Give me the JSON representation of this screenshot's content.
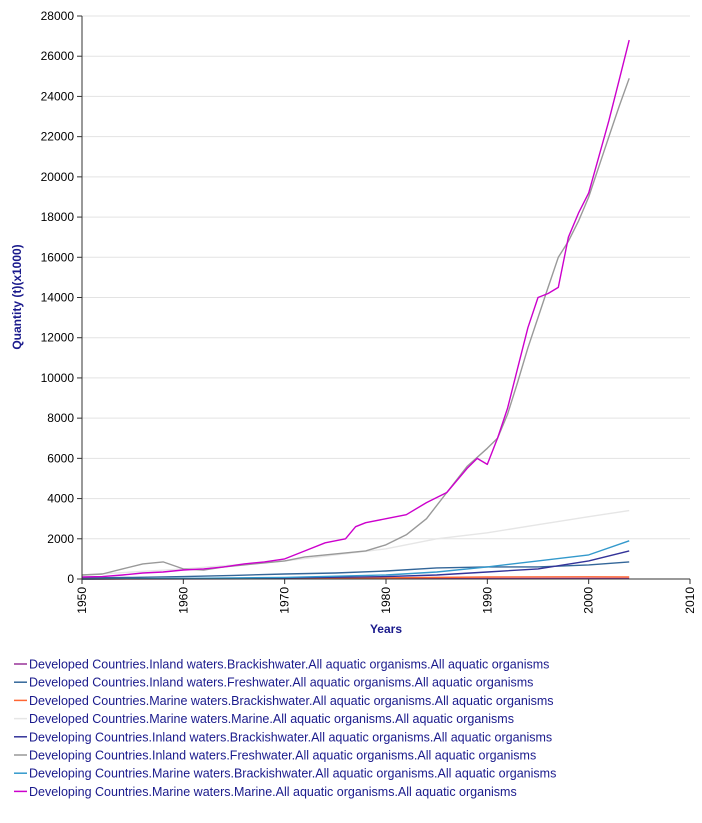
{
  "chart_data": {
    "type": "line",
    "title": "",
    "xlabel": "Years",
    "ylabel": "Quantity (t)(x1000)",
    "xlim": [
      1950,
      2010
    ],
    "ylim": [
      0,
      28000
    ],
    "xticks": [
      1950,
      1960,
      1970,
      1980,
      1990,
      2000,
      2010
    ],
    "yticks": [
      0,
      2000,
      4000,
      6000,
      8000,
      10000,
      12000,
      14000,
      16000,
      18000,
      20000,
      22000,
      24000,
      26000,
      28000
    ],
    "grid": true,
    "legend_position": "bottom",
    "series": [
      {
        "name": "Developed Countries.Inland waters.Brackishwater.All aquatic organisms.All aquatic organisms",
        "color": "#993399",
        "x": [
          1950,
          1960,
          1970,
          1980,
          1990,
          2000,
          2004
        ],
        "y": [
          0,
          5,
          10,
          20,
          30,
          30,
          30
        ]
      },
      {
        "name": "Developed Countries.Inland waters.Freshwater.All aquatic organisms.All aquatic organisms",
        "color": "#336699",
        "x": [
          1950,
          1955,
          1960,
          1965,
          1970,
          1975,
          1980,
          1985,
          1990,
          1995,
          2000,
          2004
        ],
        "y": [
          50,
          80,
          120,
          180,
          250,
          300,
          400,
          550,
          600,
          600,
          700,
          850
        ]
      },
      {
        "name": "Developed Countries.Marine waters.Brackishwater.All aquatic organisms.All aquatic organisms",
        "color": "#ff6633",
        "x": [
          1950,
          1960,
          1970,
          1980,
          1990,
          2000,
          2004
        ],
        "y": [
          0,
          10,
          30,
          60,
          100,
          110,
          100
        ]
      },
      {
        "name": "Developed Countries.Marine waters.Marine.All aquatic organisms.All aquatic organisms",
        "color": "#e6e6e6",
        "x": [
          1950,
          1955,
          1960,
          1965,
          1970,
          1975,
          1980,
          1985,
          1990,
          1995,
          2000,
          2004
        ],
        "y": [
          200,
          350,
          500,
          700,
          900,
          1200,
          1500,
          2000,
          2300,
          2700,
          3100,
          3400
        ]
      },
      {
        "name": "Developing Countries.Inland waters.Brackishwater.All aquatic organisms.All aquatic organisms",
        "color": "#333399",
        "x": [
          1950,
          1960,
          1970,
          1980,
          1985,
          1990,
          1995,
          2000,
          2004
        ],
        "y": [
          0,
          20,
          60,
          120,
          200,
          350,
          500,
          900,
          1400
        ]
      },
      {
        "name": "Developing Countries.Inland waters.Freshwater.All aquatic organisms.All aquatic organisms",
        "color": "#999999",
        "x": [
          1950,
          1952,
          1954,
          1956,
          1958,
          1960,
          1962,
          1964,
          1966,
          1968,
          1970,
          1972,
          1974,
          1976,
          1978,
          1980,
          1982,
          1984,
          1986,
          1988,
          1990,
          1991,
          1992,
          1993,
          1994,
          1995,
          1996,
          1997,
          1998,
          1999,
          2000,
          2001,
          2002,
          2003,
          2004
        ],
        "y": [
          200,
          250,
          500,
          750,
          850,
          500,
          450,
          600,
          700,
          800,
          900,
          1100,
          1200,
          1300,
          1400,
          1700,
          2200,
          3000,
          4300,
          5600,
          6500,
          7000,
          8200,
          9800,
          11500,
          13000,
          14500,
          16000,
          16800,
          17800,
          19000,
          20500,
          22000,
          23500,
          24900
        ]
      },
      {
        "name": "Developing Countries.Marine waters.Brackishwater.All aquatic organisms.All aquatic organisms",
        "color": "#3399cc",
        "x": [
          1950,
          1960,
          1970,
          1980,
          1985,
          1990,
          1995,
          2000,
          2004
        ],
        "y": [
          0,
          30,
          80,
          200,
          350,
          600,
          900,
          1200,
          1900
        ]
      },
      {
        "name": "Developing Countries.Marine waters.Marine.All aquatic organisms.All aquatic organisms",
        "color": "#cc00cc",
        "x": [
          1950,
          1952,
          1954,
          1956,
          1958,
          1960,
          1962,
          1964,
          1966,
          1968,
          1970,
          1972,
          1974,
          1976,
          1977,
          1978,
          1980,
          1982,
          1984,
          1986,
          1988,
          1989,
          1990,
          1991,
          1992,
          1993,
          1994,
          1995,
          1996,
          1997,
          1998,
          1999,
          2000,
          2001,
          2002,
          2003,
          2004
        ],
        "y": [
          100,
          120,
          200,
          300,
          350,
          450,
          500,
          600,
          750,
          850,
          1000,
          1400,
          1800,
          2000,
          2600,
          2800,
          3000,
          3200,
          3800,
          4300,
          5500,
          6000,
          5700,
          7000,
          8500,
          10500,
          12500,
          14000,
          14200,
          14500,
          17000,
          18200,
          19200,
          21000,
          22800,
          24800,
          26800
        ]
      }
    ]
  }
}
